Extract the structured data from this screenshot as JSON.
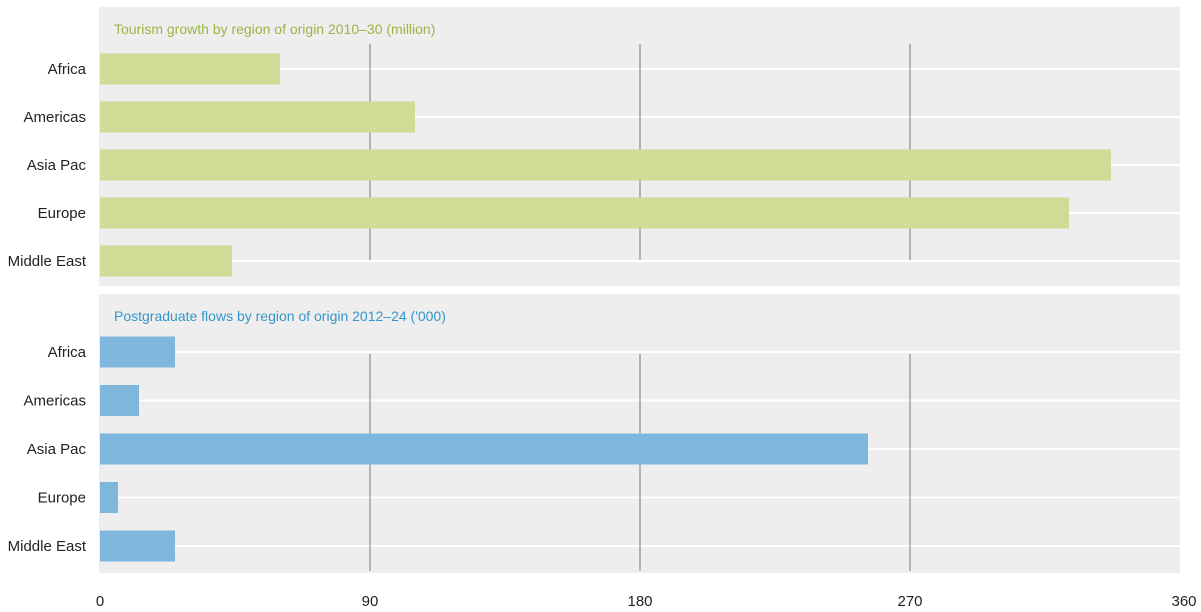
{
  "chart_data": [
    {
      "type": "bar",
      "orientation": "horizontal",
      "title": "Tourism growth by region of origin 2010–30 (million)",
      "categories": [
        "Africa",
        "Americas",
        "Asia Pac",
        "Europe",
        "Middle East"
      ],
      "values": [
        60,
        105,
        337,
        323,
        44
      ],
      "xlim": [
        0,
        360
      ],
      "xticks": [
        0,
        90,
        180,
        270,
        360
      ],
      "grid": true,
      "color": "#cfdc95",
      "title_color": "#9bb545"
    },
    {
      "type": "bar",
      "orientation": "horizontal",
      "title": "Postgraduate flows by region of origin 2012–24 ('000)",
      "categories": [
        "Africa",
        "Americas",
        "Asia Pac",
        "Europe",
        "Middle East"
      ],
      "values": [
        25,
        13,
        256,
        6,
        25
      ],
      "xlim": [
        0,
        360
      ],
      "xticks": [
        0,
        90,
        180,
        270,
        360
      ],
      "grid": true,
      "color": "#7fb7dc",
      "title_color": "#3596c8"
    }
  ],
  "colors": {
    "panel_background": "#eeeeee",
    "gridline": "#777777",
    "separator": "#ffffff"
  }
}
